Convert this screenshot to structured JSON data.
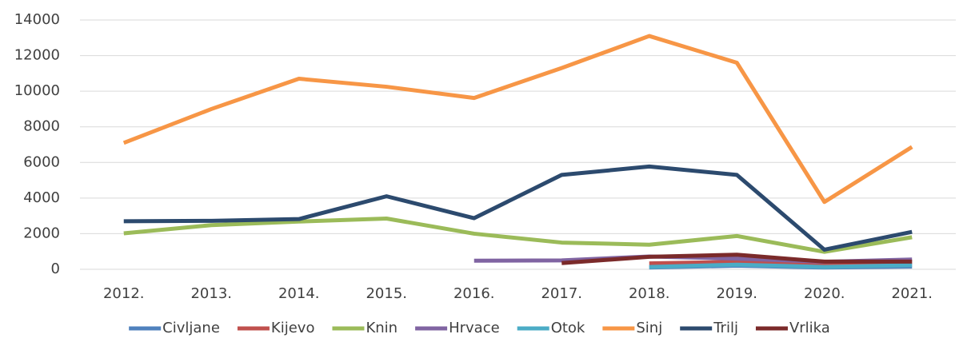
{
  "chart_data": {
    "type": "line",
    "categories": [
      "2012.",
      "2013.",
      "2014.",
      "2015.",
      "2016.",
      "2017.",
      "2018.",
      "2019.",
      "2020.",
      "2021."
    ],
    "series": [
      {
        "name": "Civljane",
        "color": "#4f81bd",
        "values": [
          null,
          null,
          null,
          null,
          null,
          null,
          100,
          200,
          100,
          150
        ]
      },
      {
        "name": "Kijevo",
        "color": "#c0504d",
        "values": [
          null,
          null,
          null,
          null,
          null,
          null,
          330,
          420,
          300,
          380
        ]
      },
      {
        "name": "Knin",
        "color": "#9bbb59",
        "values": [
          2020,
          2480,
          2680,
          2850,
          2000,
          1500,
          1380,
          1870,
          980,
          1800
        ]
      },
      {
        "name": "Hrvace",
        "color": "#8064a2",
        "values": [
          null,
          null,
          null,
          null,
          480,
          500,
          720,
          600,
          420,
          550
        ]
      },
      {
        "name": "Otok",
        "color": "#4bacc6",
        "values": [
          null,
          null,
          null,
          null,
          null,
          null,
          130,
          260,
          130,
          230
        ]
      },
      {
        "name": "Sinj",
        "color": "#f79646",
        "values": [
          7100,
          9000,
          10700,
          10250,
          9620,
          11300,
          13100,
          11600,
          3780,
          6870
        ]
      },
      {
        "name": "Trilj",
        "color": "#2c4a6e",
        "values": [
          2700,
          2720,
          2820,
          4100,
          2870,
          5300,
          5770,
          5300,
          1100,
          2100
        ]
      },
      {
        "name": "Vrlika",
        "color": "#7b2a2a",
        "values": [
          null,
          null,
          null,
          null,
          null,
          350,
          700,
          820,
          430,
          430
        ]
      }
    ],
    "ylim": [
      0,
      14000
    ],
    "yticks": [
      0,
      2000,
      4000,
      6000,
      8000,
      10000,
      12000,
      14000
    ],
    "grid": true,
    "legend": "bottom"
  }
}
